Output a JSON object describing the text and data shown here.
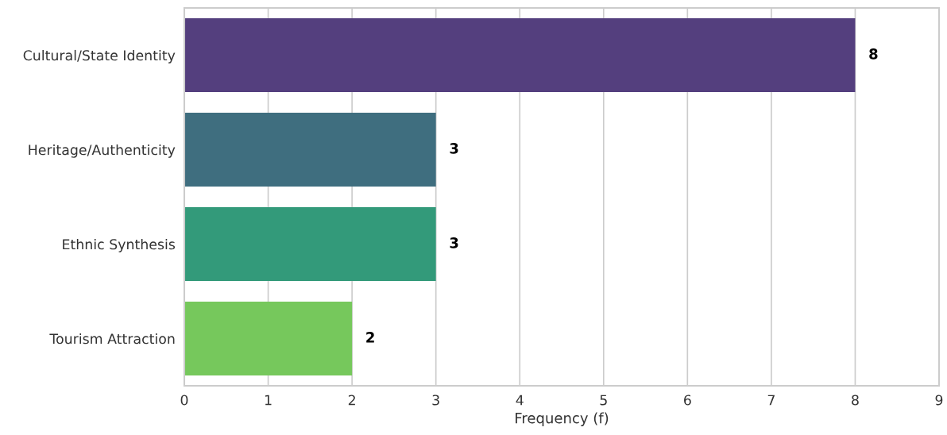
{
  "chart_data": {
    "type": "bar",
    "orientation": "horizontal",
    "xlabel": "Frequency (f)",
    "categories": [
      "Cultural/State Identity",
      "Heritage/Authenticity",
      "Ethnic Synthesis",
      "Tourism Attraction"
    ],
    "values": [
      8,
      3,
      3,
      2
    ],
    "colors": [
      "#543f7e",
      "#3f6e7f",
      "#339a7a",
      "#76c85c"
    ],
    "xlim": [
      0,
      9
    ],
    "xticks": [
      0,
      1,
      2,
      3,
      4,
      5,
      6,
      7,
      8,
      9
    ],
    "grid": "x",
    "data_labels": true,
    "legend": false
  }
}
